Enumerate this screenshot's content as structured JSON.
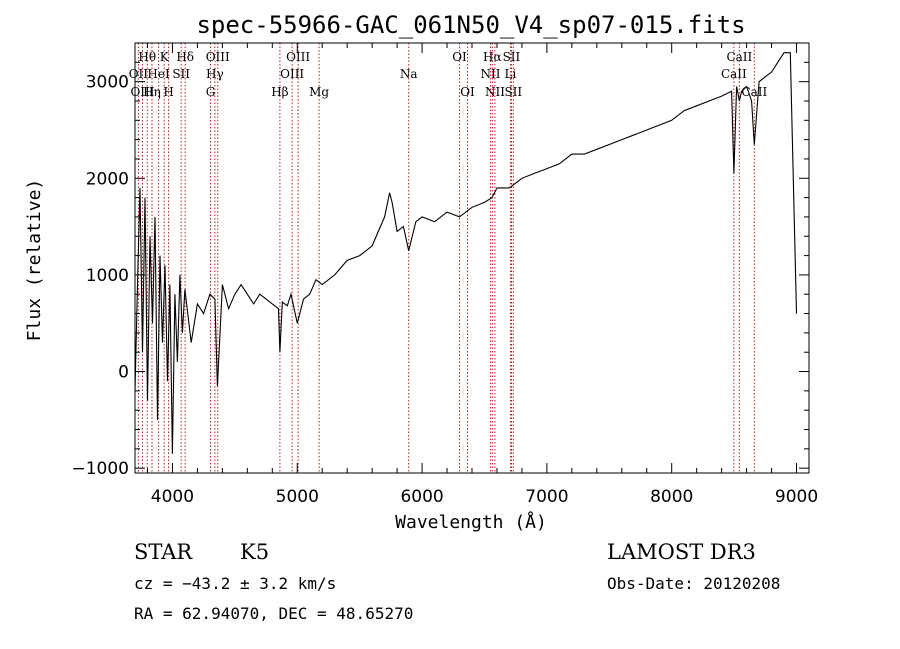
{
  "chart_data": {
    "type": "line",
    "title": "spec-55966-GAC_061N50_V4_sp07-015.fits",
    "xlabel": "Wavelength (Å)",
    "ylabel": "Flux (relative)",
    "xlim": [
      3700,
      9100
    ],
    "ylim": [
      -1050,
      3400
    ],
    "xticks": [
      4000,
      5000,
      6000,
      7000,
      8000,
      9000
    ],
    "xtick_labels": [
      "4000",
      "5000",
      "6000",
      "7000",
      "8000",
      "9000"
    ],
    "yticks": [
      -1000,
      0,
      1000,
      2000,
      3000
    ],
    "ytick_labels": [
      "−1000",
      "0",
      "1000",
      "2000",
      "3000"
    ],
    "grid": false,
    "series": [
      {
        "name": "spectrum",
        "x": [
          3700,
          3720,
          3740,
          3760,
          3780,
          3800,
          3820,
          3840,
          3860,
          3880,
          3900,
          3920,
          3940,
          3960,
          3980,
          4000,
          4020,
          4040,
          4060,
          4080,
          4100,
          4150,
          4200,
          4250,
          4300,
          4340,
          4360,
          4400,
          4450,
          4500,
          4550,
          4600,
          4650,
          4700,
          4750,
          4800,
          4850,
          4861,
          4880,
          4920,
          4950,
          5000,
          5050,
          5100,
          5150,
          5200,
          5300,
          5400,
          5500,
          5600,
          5700,
          5740,
          5760,
          5800,
          5850,
          5893,
          5950,
          6000,
          6100,
          6200,
          6300,
          6400,
          6500,
          6560,
          6600,
          6700,
          6800,
          6900,
          7000,
          7100,
          7200,
          7300,
          7400,
          7500,
          7600,
          7700,
          7800,
          7900,
          8000,
          8100,
          8200,
          8300,
          8400,
          8480,
          8498,
          8520,
          8542,
          8560,
          8600,
          8640,
          8662,
          8700,
          8750,
          8800,
          8850,
          8900,
          8950,
          9000
        ],
        "y": [
          -200,
          900,
          1900,
          200,
          1800,
          -300,
          1400,
          500,
          1600,
          -500,
          1200,
          300,
          1100,
          -100,
          900,
          -850,
          800,
          100,
          1000,
          400,
          850,
          300,
          700,
          600,
          800,
          750,
          -150,
          900,
          650,
          800,
          900,
          800,
          700,
          800,
          750,
          700,
          650,
          200,
          720,
          680,
          800,
          500,
          750,
          800,
          950,
          900,
          1000,
          1150,
          1200,
          1300,
          1600,
          1850,
          1750,
          1450,
          1500,
          1250,
          1550,
          1600,
          1550,
          1650,
          1600,
          1700,
          1750,
          1800,
          1900,
          1900,
          2000,
          2050,
          2100,
          2150,
          2250,
          2250,
          2300,
          2350,
          2400,
          2450,
          2500,
          2550,
          2600,
          2700,
          2750,
          2800,
          2850,
          2900,
          2050,
          2950,
          2800,
          2900,
          2950,
          2800,
          2350,
          3000,
          3050,
          3100,
          3200,
          3300,
          3300,
          600
        ]
      }
    ],
    "lines": [
      {
        "label": "Hθ",
        "x": 3798,
        "row": 1
      },
      {
        "label": "OII",
        "x": 3727,
        "row": 2
      },
      {
        "label": "OIII",
        "x": 3760,
        "row": 3
      },
      {
        "label": "Hη",
        "x": 3836,
        "row": 3
      },
      {
        "label": "K",
        "x": 3934,
        "row": 1
      },
      {
        "label": "HeI",
        "x": 3889,
        "row": 2
      },
      {
        "label": "SII",
        "x": 4070,
        "row": 2
      },
      {
        "label": "H",
        "x": 3969,
        "row": 3
      },
      {
        "label": "Hδ",
        "x": 4102,
        "row": 1
      },
      {
        "label": "OIII",
        "x": 4363,
        "row": 1
      },
      {
        "label": "Hγ",
        "x": 4340,
        "row": 2
      },
      {
        "label": "G",
        "x": 4305,
        "row": 3
      },
      {
        "label": "Hβ",
        "x": 4861,
        "row": 3
      },
      {
        "label": "OIII",
        "x": 5007,
        "row": 1
      },
      {
        "label": "OIII",
        "x": 4959,
        "row": 2
      },
      {
        "label": "Mg",
        "x": 5175,
        "row": 3
      },
      {
        "label": "Na",
        "x": 5893,
        "row": 2
      },
      {
        "label": "OI",
        "x": 6300,
        "row": 1
      },
      {
        "label": "OI",
        "x": 6364,
        "row": 3
      },
      {
        "label": "Hα",
        "x": 6563,
        "row": 1
      },
      {
        "label": "SII",
        "x": 6716,
        "row": 1
      },
      {
        "label": "NII",
        "x": 6548,
        "row": 2
      },
      {
        "label": "Li",
        "x": 6708,
        "row": 2
      },
      {
        "label": "NII",
        "x": 6584,
        "row": 3
      },
      {
        "label": "SII",
        "x": 6731,
        "row": 3
      },
      {
        "label": "CaII",
        "x": 8542,
        "row": 1
      },
      {
        "label": "CaII",
        "x": 8498,
        "row": 2
      },
      {
        "label": "CaII",
        "x": 8662,
        "row": 3
      }
    ]
  },
  "info": {
    "star": "STAR",
    "subclass": "K5",
    "survey": "LAMOST DR3",
    "cz": "cz = −43.2 ± 3.2 km/s",
    "obs_date": "Obs-Date: 20120208",
    "radec": "RA =  62.94070, DEC =  48.65270"
  },
  "colors": {
    "line_marker": "#b22222",
    "spectrum": "#000000",
    "axes": "#000000"
  }
}
